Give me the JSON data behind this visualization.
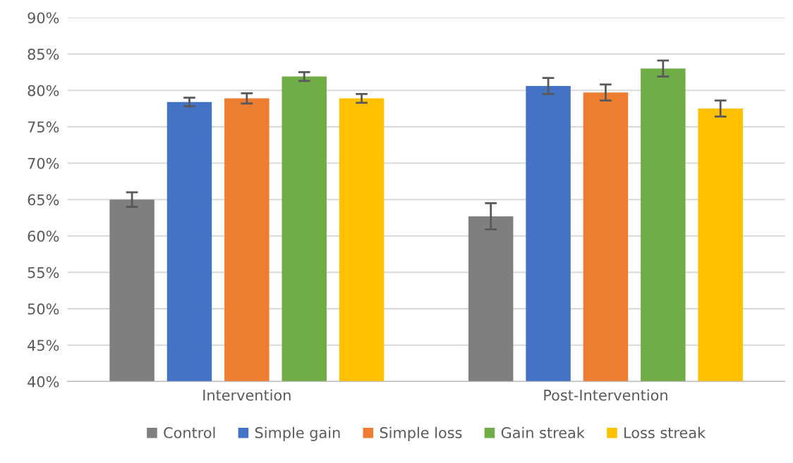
{
  "chart_data": {
    "type": "bar",
    "categories": [
      "Intervention",
      "Post-Intervention"
    ],
    "series": [
      {
        "name": "Control",
        "color": "#7f7f7f",
        "values": [
          65.0,
          62.7
        ],
        "errors": [
          1.0,
          1.8
        ]
      },
      {
        "name": "Simple gain",
        "color": "#4472c4",
        "values": [
          78.4,
          80.6
        ],
        "errors": [
          0.6,
          1.1
        ]
      },
      {
        "name": "Simple loss",
        "color": "#ed7d31",
        "values": [
          78.9,
          79.7
        ],
        "errors": [
          0.7,
          1.1
        ]
      },
      {
        "name": "Gain streak",
        "color": "#70ad47",
        "values": [
          81.9,
          83.0
        ],
        "errors": [
          0.6,
          1.1
        ]
      },
      {
        "name": "Loss streak",
        "color": "#ffc000",
        "values": [
          78.9,
          77.5
        ],
        "errors": [
          0.6,
          1.1
        ]
      }
    ],
    "ylim": [
      40,
      90
    ],
    "yticks": [
      {
        "value": 40,
        "label": "40%"
      },
      {
        "value": 45,
        "label": "45%"
      },
      {
        "value": 50,
        "label": "50%"
      },
      {
        "value": 55,
        "label": "55%"
      },
      {
        "value": 60,
        "label": "60%"
      },
      {
        "value": 65,
        "label": "65%"
      },
      {
        "value": 70,
        "label": "70%"
      },
      {
        "value": 75,
        "label": "75%"
      },
      {
        "value": 80,
        "label": "80%"
      },
      {
        "value": 85,
        "label": "85%"
      },
      {
        "value": 90,
        "label": "90%"
      }
    ],
    "grid": "y",
    "legend": "bottom"
  }
}
